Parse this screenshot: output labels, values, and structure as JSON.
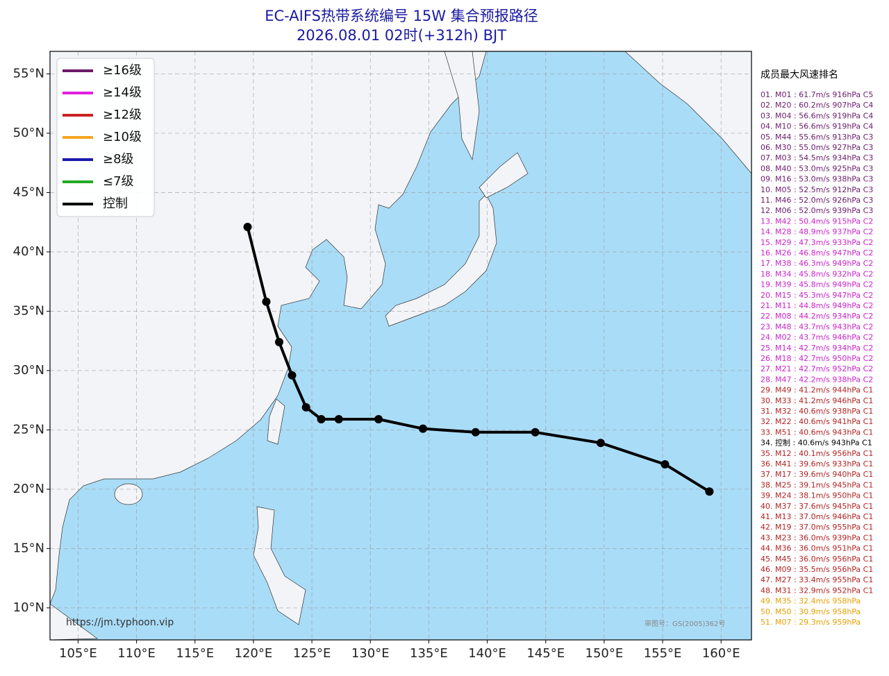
{
  "map": {
    "title": "EC-AIFS热带系统编号 15W 集合预报路径",
    "subtitle": "2026.08.01 02时(+312h) BJT",
    "xlim": [
      102.6,
      162.6
    ],
    "ylim": [
      7.3,
      56.9
    ],
    "xticks": [
      {
        "value": 105,
        "label": "105°E"
      },
      {
        "value": 110,
        "label": "110°E"
      },
      {
        "value": 115,
        "label": "115°E"
      },
      {
        "value": 120,
        "label": "120°E"
      },
      {
        "value": 125,
        "label": "125°E"
      },
      {
        "value": 130,
        "label": "130°E"
      },
      {
        "value": 135,
        "label": "135°E"
      },
      {
        "value": 140,
        "label": "140°E"
      },
      {
        "value": 145,
        "label": "145°E"
      },
      {
        "value": 150,
        "label": "150°E"
      },
      {
        "value": 155,
        "label": "155°E"
      },
      {
        "value": 160,
        "label": "160°E"
      }
    ],
    "yticks": [
      {
        "value": 10,
        "label": "10°N"
      },
      {
        "value": 15,
        "label": "15°N"
      },
      {
        "value": 20,
        "label": "20°N"
      },
      {
        "value": 25,
        "label": "25°N"
      },
      {
        "value": 30,
        "label": "30°N"
      },
      {
        "value": 35,
        "label": "35°N"
      },
      {
        "value": 40,
        "label": "40°N"
      },
      {
        "value": 45,
        "label": "45°N"
      },
      {
        "value": 50,
        "label": "50°N"
      },
      {
        "value": 55,
        "label": "55°N"
      }
    ],
    "grid": true,
    "legend_position": "upper-left",
    "legend": [
      {
        "name": "≥16级",
        "color": "#6a1b6a"
      },
      {
        "name": "≥14级",
        "color": "#e020e0"
      },
      {
        "name": "≥12级",
        "color": "#cc2222"
      },
      {
        "name": "≥10级",
        "color": "#f5a623"
      },
      {
        "name": "≥8级",
        "color": "#1a1ab0"
      },
      {
        "name": "≤7级",
        "color": "#22aa22"
      },
      {
        "name": "控制",
        "color": "#000000"
      }
    ],
    "control_track": {
      "color": "#000000",
      "lon": [
        119.5,
        121.1,
        122.2,
        123.3,
        124.5,
        125.8,
        127.3,
        130.7,
        134.5,
        139.0,
        144.1,
        149.7,
        155.2,
        159.0
      ],
      "lat": [
        42.1,
        35.8,
        32.4,
        29.6,
        26.9,
        25.9,
        25.9,
        25.9,
        25.1,
        24.8,
        24.8,
        23.9,
        22.1,
        19.8
      ]
    },
    "source": "https://jm.typhoon.vip",
    "approval": "审图号：GS(2005)362号"
  },
  "ranking": {
    "title": "成员最大风速排名",
    "items": [
      {
        "text": "01. M01 : 61.7m/s 916hPa C5",
        "color": "#6a1b6a"
      },
      {
        "text": "02. M20 : 60.2m/s 907hPa C4",
        "color": "#6a1b6a"
      },
      {
        "text": "03. M04 : 56.6m/s 919hPa C4",
        "color": "#6a1b6a"
      },
      {
        "text": "04. M10 : 56.6m/s 919hPa C4",
        "color": "#6a1b6a"
      },
      {
        "text": "05. M44 : 55.6m/s 913hPa C3",
        "color": "#6a1b6a"
      },
      {
        "text": "06. M30 : 55.0m/s 927hPa C3",
        "color": "#6a1b6a"
      },
      {
        "text": "07. M03 : 54.5m/s 934hPa C3",
        "color": "#6a1b6a"
      },
      {
        "text": "08. M40 : 53.0m/s 925hPa C3",
        "color": "#6a1b6a"
      },
      {
        "text": "09. M16 : 53.0m/s 938hPa C3",
        "color": "#6a1b6a"
      },
      {
        "text": "10. M05 : 52.5m/s 912hPa C3",
        "color": "#6a1b6a"
      },
      {
        "text": "11. M46 : 52.0m/s 926hPa C3",
        "color": "#6a1b6a"
      },
      {
        "text": "12. M06 : 52.0m/s 939hPa C3",
        "color": "#6a1b6a"
      },
      {
        "text": "13. M42 : 50.4m/s 915hPa C2",
        "color": "#cc22cc"
      },
      {
        "text": "14. M28 : 48.9m/s 937hPa C2",
        "color": "#cc22cc"
      },
      {
        "text": "15. M29 : 47.3m/s 933hPa C2",
        "color": "#cc22cc"
      },
      {
        "text": "16. M26 : 46.8m/s 947hPa C2",
        "color": "#cc22cc"
      },
      {
        "text": "17. M38 : 46.3m/s 949hPa C2",
        "color": "#cc22cc"
      },
      {
        "text": "18. M34 : 45.8m/s 932hPa C2",
        "color": "#cc22cc"
      },
      {
        "text": "19. M39 : 45.8m/s 949hPa C2",
        "color": "#cc22cc"
      },
      {
        "text": "20. M15 : 45.3m/s 947hPa C2",
        "color": "#cc22cc"
      },
      {
        "text": "21. M11 : 44.8m/s 949hPa C2",
        "color": "#cc22cc"
      },
      {
        "text": "22. M08 : 44.2m/s 934hPa C2",
        "color": "#cc22cc"
      },
      {
        "text": "23. M48 : 43.7m/s 943hPa C2",
        "color": "#cc22cc"
      },
      {
        "text": "24. M02 : 43.7m/s 946hPa C2",
        "color": "#cc22cc"
      },
      {
        "text": "25. M14 : 42.7m/s 934hPa C2",
        "color": "#cc22cc"
      },
      {
        "text": "26. M18 : 42.7m/s 950hPa C2",
        "color": "#cc22cc"
      },
      {
        "text": "27. M21 : 42.7m/s 952hPa C2",
        "color": "#cc22cc"
      },
      {
        "text": "28. M47 : 42.2m/s 938hPa C2",
        "color": "#cc22cc"
      },
      {
        "text": "29. M49 : 41.2m/s 944hPa C1",
        "color": "#b22222"
      },
      {
        "text": "30. M33 : 41.2m/s 946hPa C1",
        "color": "#b22222"
      },
      {
        "text": "31. M32 : 40.6m/s 938hPa C1",
        "color": "#b22222"
      },
      {
        "text": "32. M22 : 40.6m/s 941hPa C1",
        "color": "#b22222"
      },
      {
        "text": "33. M51 : 40.6m/s 943hPa C1",
        "color": "#b22222"
      },
      {
        "text": "34. 控制 : 40.6m/s 943hPa C1",
        "color": "#000000"
      },
      {
        "text": "35. M12 : 40.1m/s 956hPa C1",
        "color": "#b22222"
      },
      {
        "text": "36. M41 : 39.6m/s 933hPa C1",
        "color": "#b22222"
      },
      {
        "text": "37. M17 : 39.6m/s 940hPa C1",
        "color": "#b22222"
      },
      {
        "text": "38. M25 : 39.1m/s 945hPa C1",
        "color": "#b22222"
      },
      {
        "text": "39. M24 : 38.1m/s 950hPa C1",
        "color": "#b22222"
      },
      {
        "text": "40. M37 : 37.6m/s 945hPa C1",
        "color": "#b22222"
      },
      {
        "text": "41. M13 : 37.0m/s 946hPa C1",
        "color": "#b22222"
      },
      {
        "text": "42. M19 : 37.0m/s 955hPa C1",
        "color": "#b22222"
      },
      {
        "text": "43. M23 : 36.0m/s 939hPa C1",
        "color": "#b22222"
      },
      {
        "text": "44. M36 : 36.0m/s 951hPa C1",
        "color": "#b22222"
      },
      {
        "text": "45. M45 : 36.0m/s 956hPa C1",
        "color": "#b22222"
      },
      {
        "text": "46. M09 : 35.5m/s 956hPa C1",
        "color": "#b22222"
      },
      {
        "text": "47. M27 : 33.4m/s 955hPa C1",
        "color": "#b22222"
      },
      {
        "text": "48. M31 : 32.9m/s 952hPa C1",
        "color": "#b22222"
      },
      {
        "text": "49. M35 : 32.4m/s 958hPa",
        "color": "#e6a000"
      },
      {
        "text": "50. M50 : 30.9m/s 958hPa",
        "color": "#e6a000"
      },
      {
        "text": "51. M07 : 29.3m/s 959hPa",
        "color": "#e6a000"
      }
    ]
  }
}
